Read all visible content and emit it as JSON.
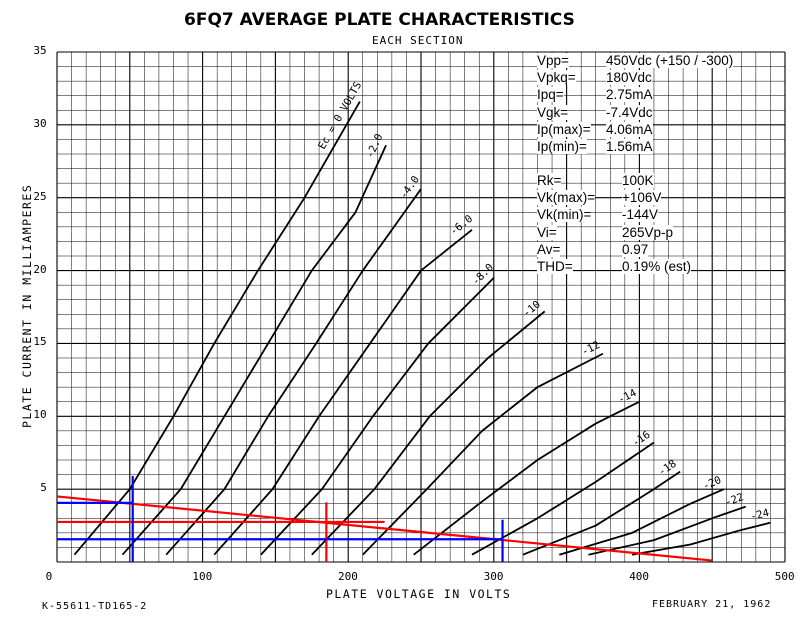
{
  "chart_data": {
    "type": "line",
    "title": "6FQ7 AVERAGE PLATE CHARACTERISTICS",
    "subtitle": "EACH SECTION",
    "xlabel": "PLATE VOLTAGE IN VOLTS",
    "ylabel": "PLATE CURRENT IN MILLIAMPERES",
    "xlim": [
      0,
      500
    ],
    "ylim": [
      0,
      35
    ],
    "grid": true,
    "x_ticks": [
      "0",
      "100",
      "200",
      "300",
      "400",
      "500"
    ],
    "y_ticks": [
      "5",
      "10",
      "15",
      "20",
      "25",
      "30",
      "35"
    ],
    "footer_left": "K-55611-TD165-2",
    "footer_right": "FEBRUARY 21, 1962",
    "series": [
      {
        "name": "0 VOLTS",
        "label": "Ec = 0 VOLTS",
        "points": [
          [
            12,
            0.5
          ],
          [
            50,
            5
          ],
          [
            80,
            10
          ],
          [
            108,
            15
          ],
          [
            138,
            20
          ],
          [
            170,
            25
          ],
          [
            208,
            31.6
          ]
        ]
      },
      {
        "name": "-2.0",
        "label": "-2.0",
        "points": [
          [
            45,
            0.5
          ],
          [
            85,
            5
          ],
          [
            115,
            10
          ],
          [
            145,
            15
          ],
          [
            175,
            20
          ],
          [
            205,
            24
          ],
          [
            226,
            28.6
          ]
        ]
      },
      {
        "name": "-4.0",
        "label": "-4.0",
        "points": [
          [
            75,
            0.5
          ],
          [
            115,
            5
          ],
          [
            145,
            10
          ],
          [
            178,
            15
          ],
          [
            210,
            20
          ],
          [
            250,
            25.6
          ]
        ]
      },
      {
        "name": "-6.0",
        "label": "-6.0",
        "points": [
          [
            108,
            0.5
          ],
          [
            148,
            5
          ],
          [
            180,
            10
          ],
          [
            215,
            15
          ],
          [
            250,
            20
          ],
          [
            285,
            22.8
          ]
        ]
      },
      {
        "name": "-8.0",
        "label": "-8.0",
        "points": [
          [
            140,
            0.5
          ],
          [
            182,
            5
          ],
          [
            217,
            10
          ],
          [
            255,
            15
          ],
          [
            300,
            19.5
          ]
        ]
      },
      {
        "name": "-10",
        "label": "-10",
        "points": [
          [
            175,
            0.5
          ],
          [
            218,
            5
          ],
          [
            256,
            10
          ],
          [
            296,
            14
          ],
          [
            335,
            17.2
          ]
        ]
      },
      {
        "name": "-12",
        "label": "-12",
        "points": [
          [
            210,
            0.5
          ],
          [
            254,
            5
          ],
          [
            292,
            9
          ],
          [
            330,
            12
          ],
          [
            375,
            14.3
          ]
        ]
      },
      {
        "name": "-14",
        "label": "-14",
        "points": [
          [
            245,
            0.5
          ],
          [
            290,
            4
          ],
          [
            330,
            7
          ],
          [
            370,
            9.5
          ],
          [
            400,
            11
          ]
        ]
      },
      {
        "name": "-16",
        "label": "-16",
        "points": [
          [
            285,
            0.5
          ],
          [
            330,
            3
          ],
          [
            370,
            5.5
          ],
          [
            410,
            8.2
          ]
        ]
      },
      {
        "name": "-18",
        "label": "-18",
        "points": [
          [
            320,
            0.5
          ],
          [
            370,
            2.5
          ],
          [
            410,
            5
          ],
          [
            428,
            6.2
          ]
        ]
      },
      {
        "name": "-20",
        "label": "-20",
        "points": [
          [
            345,
            0.5
          ],
          [
            395,
            2
          ],
          [
            435,
            4
          ],
          [
            458,
            5
          ]
        ]
      },
      {
        "name": "-22",
        "label": "-22",
        "points": [
          [
            365,
            0.5
          ],
          [
            410,
            1.5
          ],
          [
            450,
            3
          ],
          [
            473,
            3.8
          ]
        ]
      },
      {
        "name": "-24",
        "label": "-24",
        "points": [
          [
            395,
            0.5
          ],
          [
            435,
            1.2
          ],
          [
            470,
            2.2
          ],
          [
            490,
            2.7
          ]
        ]
      }
    ],
    "overlay_lines": [
      {
        "color": "#ff0000",
        "points": [
          [
            0,
            4.5
          ],
          [
            450,
            0.1
          ]
        ]
      },
      {
        "color": "#ff0000",
        "points": [
          [
            0,
            2.75
          ],
          [
            225,
            2.75
          ]
        ]
      },
      {
        "color": "#ff0000",
        "points": [
          [
            185,
            4.1
          ],
          [
            185,
            0
          ]
        ]
      },
      {
        "color": "#0000ff",
        "points": [
          [
            0,
            4.06
          ],
          [
            52,
            4.06
          ]
        ]
      },
      {
        "color": "#0000ff",
        "points": [
          [
            52,
            5.9
          ],
          [
            52,
            0
          ]
        ]
      },
      {
        "color": "#0000ff",
        "points": [
          [
            0,
            1.56
          ],
          [
            306,
            1.56
          ]
        ]
      },
      {
        "color": "#0000ff",
        "points": [
          [
            306,
            2.9
          ],
          [
            306,
            0
          ]
        ]
      }
    ]
  },
  "annotations": {
    "block1": [
      {
        "key": "Vpp=",
        "value": "450Vdc (+150 / -300)"
      },
      {
        "key": "Vpkq=",
        "value": "180Vdc"
      },
      {
        "key": "Ipq=",
        "value": "2.75mA"
      },
      {
        "key": "Vgk=",
        "value": "-7.4Vdc"
      },
      {
        "key": "Ip(max)=",
        "value": "4.06mA"
      },
      {
        "key": "Ip(min)=",
        "value": "1.56mA"
      }
    ],
    "block2": [
      {
        "key": "Rk=",
        "value": "100K"
      },
      {
        "key": "Vk(max)=",
        "value": "+106V"
      },
      {
        "key": "Vk(min)=",
        "value": "-144V"
      },
      {
        "key": "Vi=",
        "value": "265Vp-p"
      },
      {
        "key": "Av=",
        "value": "0.97"
      },
      {
        "key": "THD=",
        "value": "0.19% (est)"
      }
    ]
  }
}
